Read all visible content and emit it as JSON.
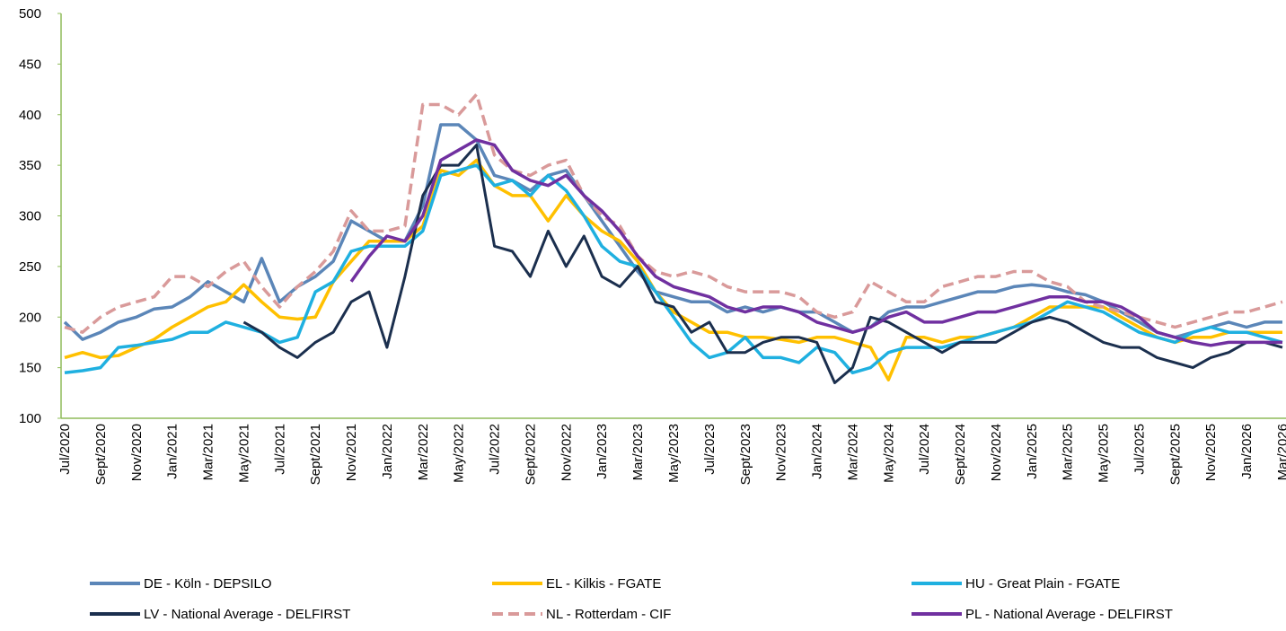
{
  "chart_data": {
    "type": "line",
    "categories": [
      "Jul/2020",
      null,
      "Sept/2020",
      null,
      "Nov/2020",
      null,
      "Jan/2021",
      null,
      "Mar/2021",
      null,
      "May/2021",
      null,
      "Jul/2021",
      null,
      "Sept/2021",
      null,
      "Nov/2021",
      null,
      "Jan/2022",
      null,
      "Mar/2022",
      null,
      "May/2022",
      null,
      "Jul/2022",
      null,
      "Sept/2022",
      null,
      "Nov/2022",
      null,
      "Jan/2023",
      null,
      "Mar/2023",
      null,
      "May/2023",
      null,
      "Jul/2023",
      null,
      "Sept/2023",
      null,
      "Nov/2023",
      null,
      "Jan/2024",
      null,
      "Mar/2024",
      null,
      "May/2024",
      null,
      "Jul/2024",
      null,
      "Sept/2024",
      null,
      "Nov/2024",
      null,
      "Jan/2025",
      null,
      "Mar/2025",
      null,
      "May/2025",
      null,
      "Jul/2025",
      null,
      "Sept/2025",
      null,
      "Nov/2025",
      null,
      "Jan/2026",
      null,
      "Mar/2026"
    ],
    "ylim": [
      100,
      500
    ],
    "yticks": [
      100,
      150,
      200,
      250,
      300,
      350,
      400,
      450,
      500
    ],
    "grid": false,
    "series": [
      {
        "name": "DE - Köln - DEPSILO",
        "color": "#5b86b8",
        "dash": false,
        "values": [
          195,
          178,
          185,
          195,
          200,
          208,
          210,
          220,
          235,
          225,
          215,
          258,
          215,
          230,
          240,
          255,
          295,
          285,
          275,
          275,
          310,
          390,
          390,
          375,
          340,
          335,
          325,
          340,
          345,
          320,
          295,
          270,
          245,
          225,
          220,
          215,
          215,
          205,
          210,
          205,
          210,
          205,
          205,
          195,
          185,
          190,
          205,
          210,
          210,
          215,
          220,
          225,
          225,
          230,
          232,
          230,
          225,
          222,
          215,
          205,
          195,
          185,
          180,
          185,
          190,
          195,
          190,
          195,
          195
        ]
      },
      {
        "name": "EL - Kilkis - FGATE",
        "color": "#ffc000",
        "dash": false,
        "values": [
          160,
          165,
          160,
          162,
          170,
          178,
          190,
          200,
          210,
          215,
          232,
          215,
          200,
          198,
          200,
          235,
          255,
          275,
          275,
          275,
          290,
          345,
          340,
          355,
          330,
          320,
          320,
          295,
          320,
          300,
          285,
          275,
          255,
          225,
          205,
          195,
          185,
          185,
          180,
          180,
          178,
          175,
          180,
          180,
          175,
          170,
          138,
          180,
          180,
          175,
          180,
          180,
          185,
          190,
          200,
          210,
          210,
          210,
          210,
          200,
          190,
          180,
          175,
          180,
          180,
          185,
          185,
          185,
          185
        ]
      },
      {
        "name": "HU - Great Plain - FGATE",
        "color": "#1fb0e0",
        "dash": false,
        "values": [
          145,
          147,
          150,
          170,
          172,
          175,
          178,
          185,
          185,
          195,
          190,
          185,
          175,
          180,
          225,
          235,
          265,
          270,
          270,
          270,
          285,
          340,
          345,
          350,
          330,
          335,
          320,
          340,
          325,
          300,
          270,
          255,
          250,
          225,
          200,
          175,
          160,
          165,
          180,
          160,
          160,
          155,
          170,
          165,
          145,
          150,
          165,
          170,
          170,
          170,
          175,
          180,
          185,
          190,
          195,
          205,
          215,
          210,
          205,
          195,
          185,
          180,
          175,
          185,
          190,
          185,
          185,
          180,
          175
        ]
      },
      {
        "name": "LV - National Average - DELFIRST",
        "color": "#1b2f4e",
        "dash": false,
        "values": [
          null,
          null,
          null,
          null,
          null,
          null,
          null,
          null,
          null,
          null,
          195,
          185,
          170,
          160,
          175,
          185,
          215,
          225,
          170,
          240,
          320,
          350,
          350,
          370,
          270,
          265,
          240,
          285,
          250,
          280,
          240,
          230,
          250,
          215,
          210,
          185,
          195,
          165,
          165,
          175,
          180,
          180,
          175,
          135,
          150,
          200,
          195,
          185,
          175,
          165,
          175,
          175,
          175,
          185,
          195,
          200,
          195,
          185,
          175,
          170,
          170,
          160,
          155,
          150,
          160,
          165,
          175,
          175,
          170
        ]
      },
      {
        "name": "NL - Rotterdam - CIF",
        "color": "#d99a9a",
        "dash": true,
        "values": [
          190,
          185,
          200,
          210,
          215,
          220,
          240,
          240,
          230,
          245,
          255,
          230,
          210,
          230,
          245,
          265,
          305,
          285,
          285,
          290,
          410,
          410,
          400,
          420,
          360,
          345,
          340,
          350,
          355,
          320,
          300,
          290,
          260,
          245,
          240,
          245,
          240,
          230,
          225,
          225,
          225,
          220,
          205,
          200,
          205,
          235,
          225,
          215,
          215,
          230,
          235,
          240,
          240,
          245,
          245,
          235,
          230,
          215,
          210,
          205,
          200,
          195,
          190,
          195,
          200,
          205,
          205,
          210,
          215
        ]
      },
      {
        "name": "PL - National Average - DELFIRST",
        "color": "#7030a0",
        "dash": false,
        "values": [
          null,
          null,
          null,
          null,
          null,
          null,
          null,
          null,
          null,
          null,
          null,
          null,
          null,
          null,
          null,
          null,
          235,
          260,
          280,
          275,
          300,
          355,
          365,
          375,
          370,
          345,
          335,
          330,
          340,
          320,
          305,
          285,
          260,
          240,
          230,
          225,
          220,
          210,
          205,
          210,
          210,
          205,
          195,
          190,
          185,
          190,
          200,
          205,
          195,
          195,
          200,
          205,
          205,
          210,
          215,
          220,
          220,
          215,
          215,
          210,
          200,
          185,
          180,
          175,
          172,
          175,
          175,
          175,
          175
        ]
      }
    ]
  }
}
